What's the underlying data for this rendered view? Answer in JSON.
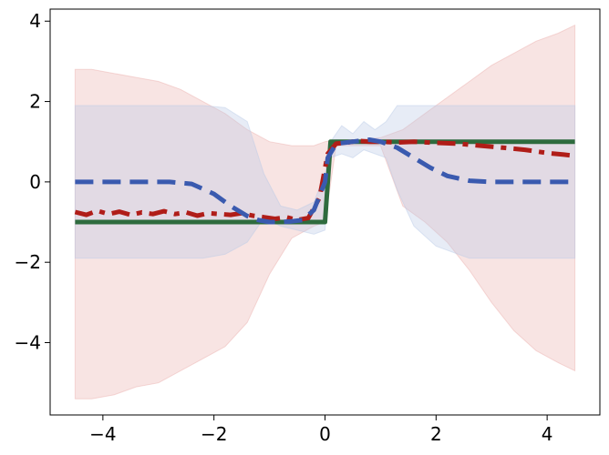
{
  "chart_data": {
    "type": "line",
    "title": "",
    "xlabel": "",
    "ylabel": "",
    "xlim": [
      -4.95,
      4.95
    ],
    "ylim": [
      -5.8,
      4.3
    ],
    "xticks": [
      -4,
      -2,
      0,
      2,
      4
    ],
    "yticks": [
      -4,
      -2,
      0,
      2,
      4
    ],
    "xtick_labels": [
      "−4",
      "−2",
      "0",
      "2",
      "4"
    ],
    "ytick_labels": [
      "−4",
      "−2",
      "0",
      "2",
      "4"
    ],
    "grid": false,
    "legend": "none",
    "bands": [
      {
        "color": "#e8a5a3",
        "opacity": 0.3,
        "x": [
          -4.5,
          -4.2,
          -3.8,
          -3.4,
          -3.0,
          -2.6,
          -2.2,
          -1.8,
          -1.4,
          -1.0,
          -0.6,
          -0.2,
          0.0,
          0.2,
          0.6,
          1.0,
          1.4,
          1.8,
          2.2,
          2.6,
          3.0,
          3.4,
          3.8,
          4.2,
          4.5
        ],
        "upper": [
          2.8,
          2.8,
          2.7,
          2.6,
          2.5,
          2.3,
          2.0,
          1.7,
          1.3,
          1.0,
          0.9,
          0.9,
          1.0,
          1.05,
          1.05,
          1.1,
          1.3,
          1.7,
          2.1,
          2.5,
          2.9,
          3.2,
          3.5,
          3.7,
          3.9
        ],
        "lower": [
          -5.4,
          -5.4,
          -5.3,
          -5.1,
          -5.0,
          -4.7,
          -4.4,
          -4.1,
          -3.5,
          -2.3,
          -1.4,
          -1.1,
          -1.0,
          0.9,
          0.9,
          0.9,
          -0.6,
          -1.0,
          -1.5,
          -2.2,
          -3.0,
          -3.7,
          -4.2,
          -4.5,
          -4.7
        ]
      },
      {
        "color": "#b9c9e6",
        "opacity": 0.35,
        "x": [
          -4.5,
          -2.2,
          -1.8,
          -1.4,
          -1.1,
          -0.8,
          -0.5,
          -0.2,
          0.0,
          0.1,
          0.3,
          0.5,
          0.7,
          0.9,
          1.1,
          1.3,
          1.6,
          2.0,
          2.6,
          4.5
        ],
        "upper": [
          1.9,
          1.9,
          1.85,
          1.5,
          0.2,
          -0.6,
          -0.7,
          -0.5,
          0.2,
          1.0,
          1.4,
          1.2,
          1.5,
          1.3,
          1.5,
          1.9,
          1.9,
          1.9,
          1.9,
          1.9
        ],
        "lower": [
          -1.9,
          -1.9,
          -1.8,
          -1.5,
          -0.9,
          -1.1,
          -1.2,
          -1.3,
          -1.2,
          0.6,
          0.7,
          0.6,
          0.8,
          0.7,
          0.6,
          -0.2,
          -1.1,
          -1.6,
          -1.9,
          -1.9
        ]
      }
    ],
    "series": [
      {
        "color": "#2e6b3e",
        "dash": "solid",
        "x": [
          -4.5,
          0.0,
          0.1,
          4.5
        ],
        "y": [
          -1.0,
          -1.0,
          1.0,
          1.0
        ]
      },
      {
        "color": "#b01d18",
        "dash": "dashdot",
        "x": [
          -4.5,
          -4.3,
          -4.1,
          -3.9,
          -3.7,
          -3.5,
          -3.3,
          -3.1,
          -2.9,
          -2.7,
          -2.5,
          -2.3,
          -2.1,
          -1.9,
          -1.7,
          -1.5,
          -1.3,
          -1.1,
          -0.9,
          -0.7,
          -0.5,
          -0.3,
          -0.1,
          0.05,
          0.2,
          0.4,
          0.6,
          0.8,
          1.0,
          1.3,
          1.6,
          2.0,
          2.4,
          2.8,
          3.2,
          3.6,
          4.0,
          4.3,
          4.5
        ],
        "y": [
          -0.75,
          -0.82,
          -0.72,
          -0.8,
          -0.74,
          -0.82,
          -0.76,
          -0.8,
          -0.73,
          -0.8,
          -0.76,
          -0.84,
          -0.78,
          -0.8,
          -0.82,
          -0.78,
          -0.84,
          -0.88,
          -0.92,
          -0.88,
          -0.95,
          -0.9,
          -0.4,
          0.7,
          0.95,
          0.98,
          1.02,
          1.0,
          1.0,
          0.98,
          1.0,
          0.97,
          0.95,
          0.9,
          0.85,
          0.8,
          0.72,
          0.68,
          0.65
        ]
      },
      {
        "color": "#3a5aaf",
        "dash": "dashed",
        "x": [
          -4.5,
          -3.5,
          -2.8,
          -2.4,
          -2.0,
          -1.7,
          -1.4,
          -1.2,
          -1.0,
          -0.8,
          -0.6,
          -0.4,
          -0.2,
          0.0,
          0.05,
          0.2,
          0.5,
          0.8,
          1.0,
          1.3,
          1.6,
          1.9,
          2.2,
          2.6,
          3.0,
          3.5,
          4.5
        ],
        "y": [
          0.0,
          0.0,
          0.0,
          -0.05,
          -0.3,
          -0.6,
          -0.85,
          -0.95,
          -1.0,
          -1.0,
          -0.98,
          -0.95,
          -0.7,
          0.0,
          0.6,
          0.95,
          1.0,
          1.05,
          1.0,
          0.85,
          0.6,
          0.35,
          0.15,
          0.03,
          0.0,
          0.0,
          0.0
        ]
      }
    ]
  }
}
